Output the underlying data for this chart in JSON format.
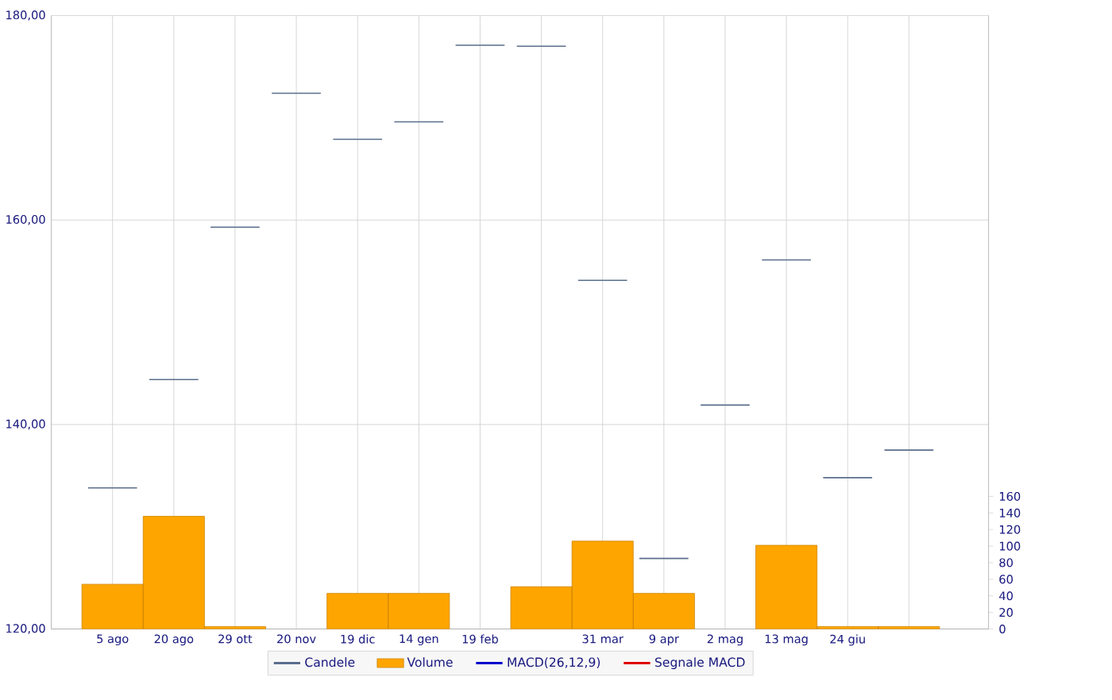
{
  "chart_data": {
    "type": "candlestick",
    "categories": [
      "5 ago",
      "20 ago",
      "29 ott",
      "20 nov",
      "19 dic",
      "14 gen",
      "19 feb",
      null,
      "31 mar",
      "9 apr",
      "2 mag",
      "13 mag",
      "24 giu",
      null
    ],
    "series": [
      {
        "name": "Candele",
        "color": "#5a6e8c",
        "ohlc": [
          [
            133.8,
            133.8,
            133.8,
            133.8
          ],
          [
            144.4,
            144.4,
            144.4,
            144.4
          ],
          [
            159.3,
            159.3,
            159.3,
            159.3
          ],
          [
            172.4,
            172.4,
            172.4,
            172.4
          ],
          [
            167.9,
            167.9,
            167.9,
            167.9
          ],
          [
            169.6,
            169.6,
            169.6,
            169.6
          ],
          [
            177.1,
            177.1,
            177.1,
            177.1
          ],
          [
            177.0,
            177.0,
            177.0,
            177.0
          ],
          [
            154.1,
            154.1,
            154.1,
            154.1
          ],
          [
            126.9,
            126.9,
            126.9,
            126.9
          ],
          [
            141.9,
            141.9,
            141.9,
            141.9
          ],
          [
            156.1,
            156.1,
            156.1,
            156.1
          ],
          [
            134.8,
            134.8,
            134.8,
            134.8
          ],
          [
            137.5,
            137.5,
            137.5,
            137.5
          ]
        ]
      },
      {
        "name": "Volume",
        "type": "bar",
        "axis": "y2",
        "color": "#ffa500",
        "values": [
          54,
          136,
          3,
          null,
          43,
          43,
          null,
          51,
          106,
          43,
          null,
          101,
          3,
          3
        ]
      },
      {
        "name": "MACD(26,12,9)",
        "type": "line",
        "color": "#0000cc",
        "values": [
          null,
          null,
          null,
          null,
          null,
          null,
          null,
          null,
          null,
          null,
          null,
          null,
          null,
          null
        ]
      },
      {
        "name": "Segnale MACD",
        "type": "line",
        "color": "#e00000",
        "values": [
          null,
          null,
          null,
          null,
          null,
          null,
          null,
          null,
          null,
          null,
          null,
          null,
          null,
          null
        ]
      }
    ],
    "ylim": [
      120,
      180
    ],
    "yticks": [
      {
        "value": 120,
        "label": "120,00"
      },
      {
        "value": 140,
        "label": "140,00"
      },
      {
        "value": 160,
        "label": "160,00"
      },
      {
        "value": 180,
        "label": "180,00"
      }
    ],
    "y2lim": [
      0,
      740
    ],
    "y2ticks": [
      0,
      20,
      40,
      60,
      80,
      100,
      120,
      140,
      160
    ],
    "grid": true,
    "legend": "bottom"
  }
}
